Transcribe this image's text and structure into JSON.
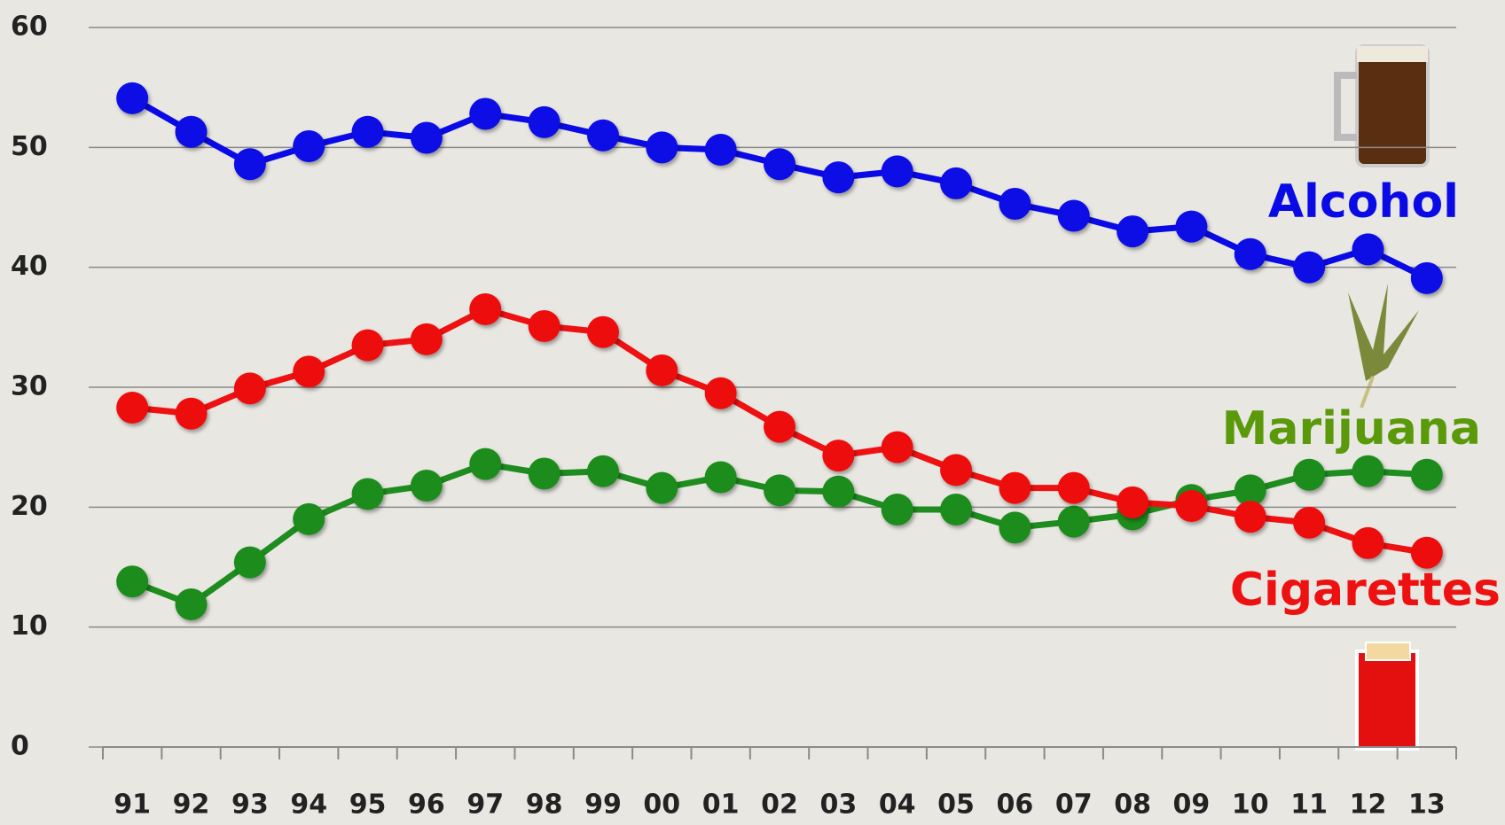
{
  "chart_data": {
    "type": "line",
    "categories": [
      "91",
      "92",
      "93",
      "94",
      "95",
      "96",
      "97",
      "98",
      "99",
      "00",
      "01",
      "02",
      "03",
      "04",
      "05",
      "06",
      "07",
      "08",
      "09",
      "10",
      "11",
      "12",
      "13"
    ],
    "series": [
      {
        "name": "Alcohol",
        "color": "#0a0ae6",
        "values": [
          54.1,
          51.3,
          48.6,
          50.1,
          51.3,
          50.8,
          52.8,
          52.1,
          51.0,
          50.0,
          49.8,
          48.6,
          47.5,
          48.0,
          47.0,
          45.3,
          44.3,
          43.0,
          43.4,
          41.1,
          40.0,
          41.5,
          39.1
        ]
      },
      {
        "name": "Cigarettes",
        "color": "#ee1111",
        "values": [
          28.3,
          27.8,
          29.9,
          31.3,
          33.5,
          34.0,
          36.5,
          35.1,
          34.6,
          31.4,
          29.5,
          26.7,
          24.3,
          25.0,
          23.1,
          21.6,
          21.6,
          20.4,
          20.1,
          19.2,
          18.7,
          17.0,
          16.2
        ]
      },
      {
        "name": "Marijuana",
        "color": "#1e8c1e",
        "label_color": "#5a9a0a",
        "values": [
          13.8,
          11.9,
          15.4,
          19.0,
          21.1,
          21.8,
          23.6,
          22.8,
          23.0,
          21.6,
          22.5,
          21.4,
          21.3,
          19.8,
          19.8,
          18.3,
          18.8,
          19.4,
          20.6,
          21.4,
          22.7,
          23.0,
          22.7
        ]
      }
    ],
    "ylim": [
      0,
      60
    ],
    "yticks": [
      0,
      10,
      20,
      30,
      40,
      50,
      60
    ],
    "grid": true
  }
}
